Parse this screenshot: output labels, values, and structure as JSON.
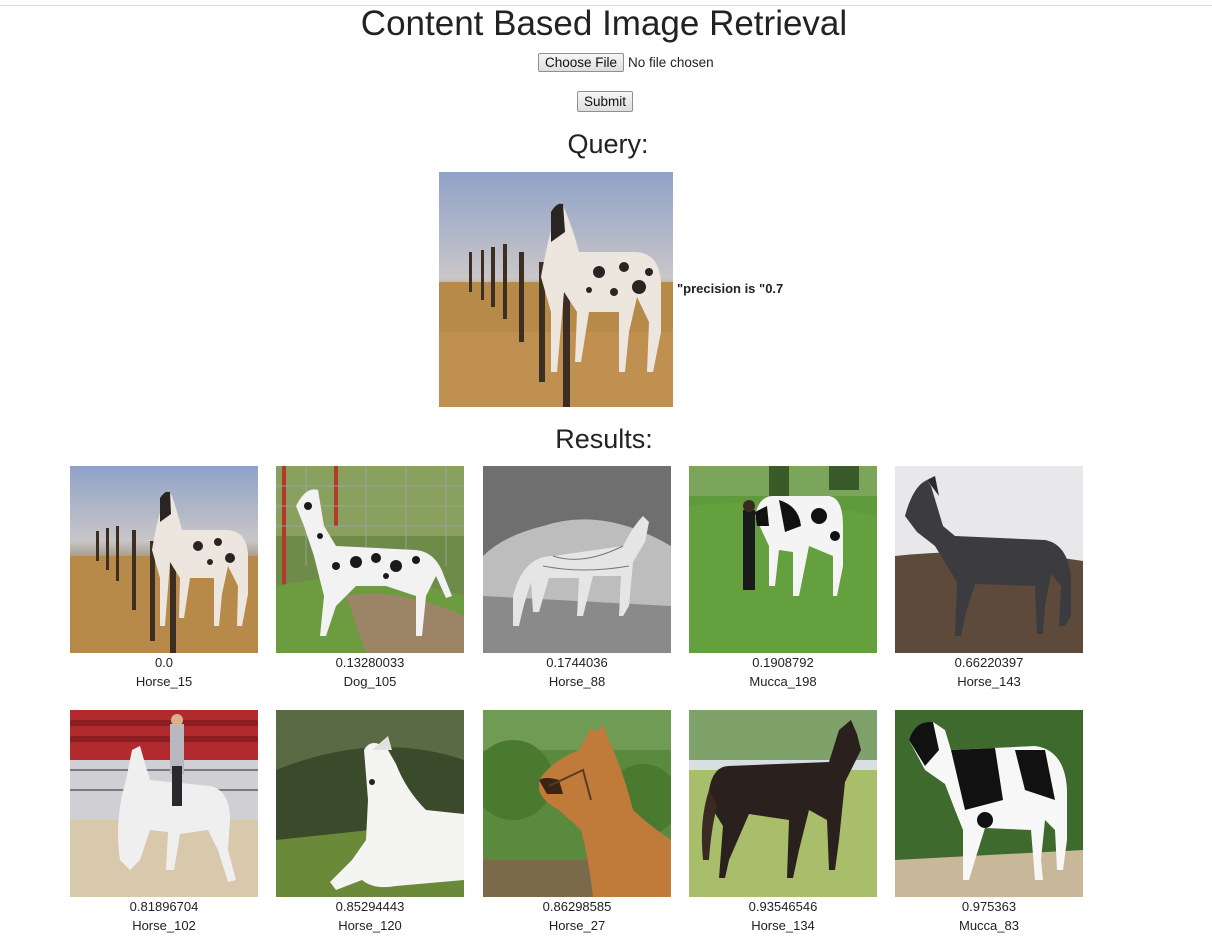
{
  "page": {
    "title": "Content Based Image Retrieval"
  },
  "upload": {
    "choose_label": "Choose File",
    "file_status": "No file chosen",
    "submit_label": "Submit"
  },
  "query": {
    "heading": "Query:",
    "image_icon": "appaloosa-horse-by-fence-image",
    "precision_text": "\"precision is \"0.7"
  },
  "results": {
    "heading": "Results:",
    "items": [
      {
        "score": "0.0",
        "label": "Horse_15",
        "icon": "appaloosa-horse-fence-image"
      },
      {
        "score": "0.13280033",
        "label": "Dog_105",
        "icon": "great-dane-dog-image"
      },
      {
        "score": "0.1744036",
        "label": "Horse_88",
        "icon": "engraved-horse-image"
      },
      {
        "score": "0.1908792",
        "label": "Mucca_198",
        "icon": "cow-with-person-image"
      },
      {
        "score": "0.66220397",
        "label": "Horse_143",
        "icon": "grey-horse-image"
      },
      {
        "score": "0.81896704",
        "label": "Horse_102",
        "icon": "rider-on-white-horse-image"
      },
      {
        "score": "0.85294443",
        "label": "Horse_120",
        "icon": "white-arabian-horse-image"
      },
      {
        "score": "0.86298585",
        "label": "Horse_27",
        "icon": "bay-horse-portrait-image"
      },
      {
        "score": "0.93546546",
        "label": "Horse_134",
        "icon": "dark-horse-on-grass-image"
      },
      {
        "score": "0.975363",
        "label": "Mucca_83",
        "icon": "black-white-cow-image"
      }
    ]
  }
}
